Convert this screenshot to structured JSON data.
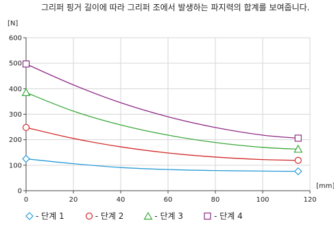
{
  "chart_data": {
    "type": "line",
    "title": "그리퍼 핑거 길이에 따라 그리퍼 조에서 발생하는 파지력의 합계를 보여줍니다.",
    "ylabel": "[N]",
    "xlabel": "[mm]",
    "xlim": [
      0,
      120
    ],
    "ylim": [
      0,
      600
    ],
    "xticks": [
      "0",
      "20",
      "40",
      "60",
      "80",
      "100",
      "120"
    ],
    "yticks": [
      "0",
      "100",
      "200",
      "300",
      "400",
      "500",
      "600"
    ],
    "grid": true,
    "legend": "bottom",
    "x": [
      0,
      20,
      40,
      60,
      80,
      100,
      115
    ],
    "series": [
      {
        "name": "단계 1",
        "color": "#2a9bd7",
        "marker": "diamond",
        "values": [
          125,
          106,
          91,
          83,
          79,
          77,
          76
        ]
      },
      {
        "name": "단계 2",
        "color": "#d32a2a",
        "marker": "circle",
        "values": [
          248,
          205,
          172,
          148,
          132,
          122,
          119
        ]
      },
      {
        "name": "단계 3",
        "color": "#3aa83a",
        "marker": "triangle",
        "values": [
          385,
          312,
          258,
          218,
          189,
          170,
          163
        ]
      },
      {
        "name": "단계 4",
        "color": "#8e2a86",
        "marker": "square",
        "values": [
          497,
          415,
          345,
          290,
          248,
          218,
          206
        ]
      }
    ]
  },
  "legend_items": [
    {
      "symbol": "diamond-icon",
      "label": "- 단계 1"
    },
    {
      "symbol": "circle-icon",
      "label": "- 단계 2"
    },
    {
      "symbol": "triangle-icon",
      "label": "- 단계 3"
    },
    {
      "symbol": "square-icon",
      "label": "- 단계 4"
    }
  ]
}
